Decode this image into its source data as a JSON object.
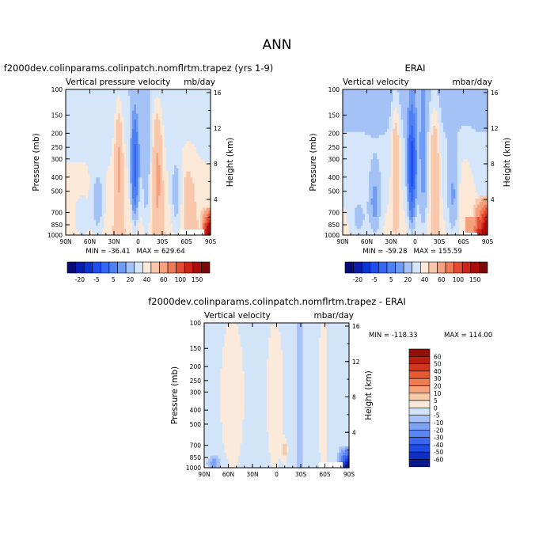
{
  "page_title": "ANN",
  "chart_data": [
    {
      "type": "heatmap",
      "title": "f2000dev.colinparams.colinpatch.nomflrtm.trapez (yrs 1-9)",
      "variable_label": "Vertical pressure velocity",
      "units": "mb/day",
      "ylabel": "Pressure (mb)",
      "ylabel_right": "Height (km)",
      "x_ticks": [
        "90N",
        "60N",
        "30N",
        "0",
        "30S",
        "60S",
        "90S"
      ],
      "y_ticks": [
        "100",
        "150",
        "200",
        "250",
        "300",
        "400",
        "500",
        "700",
        "850",
        "1000"
      ],
      "y_right_ticks": [
        "4",
        "8",
        "12",
        "16"
      ],
      "min_label": "MIN = -36.41",
      "max_label": "MAX = 629.64",
      "colorbar": [
        "-20",
        "-5",
        "5",
        "20",
        "40",
        "60",
        "100",
        "150"
      ]
    },
    {
      "type": "heatmap",
      "title": "ERAI",
      "variable_label": "Vertical velocity",
      "units": "mbar/day",
      "ylabel": "Pressure (mb)",
      "ylabel_right": "Height (km)",
      "x_ticks": [
        "90N",
        "60N",
        "30N",
        "0",
        "30S",
        "60S",
        "90S"
      ],
      "y_ticks": [
        "100",
        "150",
        "200",
        "250",
        "300",
        "400",
        "500",
        "700",
        "850",
        "1000"
      ],
      "y_right_ticks": [
        "4",
        "8",
        "12",
        "16"
      ],
      "min_label": "MIN = -59.28",
      "max_label": "MAX = 155.59",
      "colorbar": [
        "-20",
        "-5",
        "5",
        "20",
        "40",
        "60",
        "100",
        "150"
      ]
    },
    {
      "type": "heatmap",
      "title": "f2000dev.colinparams.colinpatch.nomflrtm.trapez - ERAI",
      "variable_label": "Vertical velocity",
      "units": "mbar/day",
      "ylabel": "Pressure (mb)",
      "ylabel_right": "Height (km)",
      "x_ticks": [
        "90N",
        "60N",
        "30N",
        "0",
        "30S",
        "60S",
        "90S"
      ],
      "y_ticks": [
        "100",
        "150",
        "200",
        "250",
        "300",
        "400",
        "500",
        "700",
        "850",
        "1000"
      ],
      "y_right_ticks": [
        "4",
        "8",
        "12",
        "16"
      ],
      "min_label": "MIN = -118.33",
      "max_label": "MAX = 114.00",
      "colorbar": [
        "60",
        "50",
        "40",
        "30",
        "20",
        "10",
        "5",
        "0",
        "-5",
        "-10",
        "-20",
        "-30",
        "-40",
        "-50",
        "-60"
      ]
    }
  ],
  "palettes": {
    "full": [
      "#080a78",
      "#0a1cad",
      "#0a34d6",
      "#1e4ef0",
      "#3366f5",
      "#4d7ff5",
      "#6f9bf5",
      "#a4c2f5",
      "#d6e6fa",
      "#fbe8d6",
      "#f9c7ab",
      "#f6a07e",
      "#f07a55",
      "#e54b30",
      "#cf2419",
      "#ab0d0d",
      "#7a0a0a"
    ],
    "diff": [
      "#0a1a8c",
      "#0f2fc4",
      "#1e4ae6",
      "#3a66f0",
      "#5a85f3",
      "#7fa3f5",
      "#a9c2f7",
      "#d2e4f8",
      "#fbeadb",
      "#f7caa8",
      "#f5a47b",
      "#f07d52",
      "#e55a35",
      "#d2351e",
      "#b81e10",
      "#931006"
    ]
  }
}
